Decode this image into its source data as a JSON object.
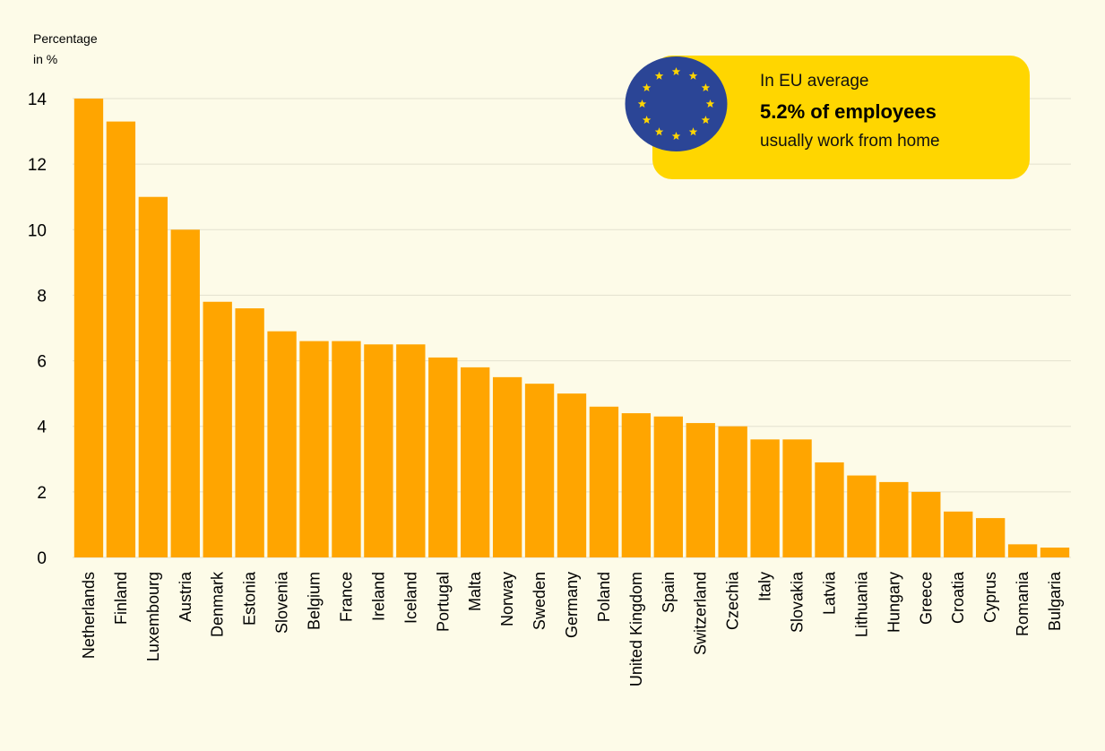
{
  "chart_data": {
    "type": "bar",
    "ylabel": "Percentage\nin %",
    "ylim": [
      0,
      14
    ],
    "yticks": [
      0,
      2,
      4,
      6,
      8,
      10,
      12,
      14
    ],
    "grid": true,
    "categories": [
      "Netherlands",
      "Finland",
      "Luxembourg",
      "Austria",
      "Denmark",
      "Estonia",
      "Slovenia",
      "Belgium",
      "France",
      "Ireland",
      "Iceland",
      "Portugal",
      "Malta",
      "Norway",
      "Sweden",
      "Germany",
      "Poland",
      "United Kingdom",
      "Spain",
      "Switzerland",
      "Czechia",
      "Italy",
      "Slovakia",
      "Latvia",
      "Lithuania",
      "Hungary",
      "Greece",
      "Croatia",
      "Cyprus",
      "Romania",
      "Bulgaria"
    ],
    "values": [
      14.0,
      13.3,
      11.0,
      10.0,
      7.8,
      7.6,
      6.9,
      6.6,
      6.6,
      6.5,
      6.5,
      6.1,
      5.8,
      5.5,
      5.3,
      5.0,
      4.6,
      4.4,
      4.3,
      4.1,
      4.0,
      3.6,
      3.6,
      2.9,
      2.5,
      2.3,
      2.0,
      1.4,
      1.2,
      0.4,
      0.3
    ],
    "colors": {
      "bar": "#ffa500",
      "callout": "#ffd600",
      "flag": "#2b4596",
      "stars": "#ffd600"
    }
  },
  "callout": {
    "line1": "In EU average",
    "line2": "5.2% of employees",
    "line3": "usually work from home",
    "icon": "eu-flag-icon"
  }
}
